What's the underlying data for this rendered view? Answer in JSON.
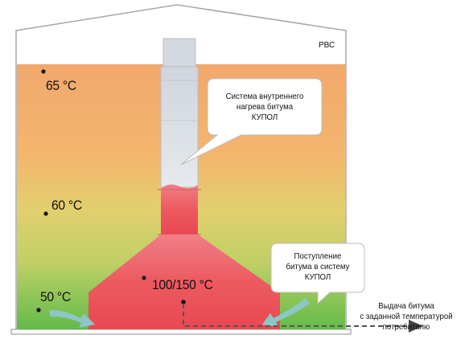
{
  "tank_label": "РВС",
  "system_bubble": {
    "lines": [
      "Система внутреннего",
      "нагрева битума",
      "КУПОЛ"
    ]
  },
  "inflow_bubble": {
    "lines": [
      "Поступление",
      "битума в систему",
      "КУПОЛ"
    ]
  },
  "temperatures": {
    "top": "65 °C",
    "middle": "60 °C",
    "bottom": "50 °C",
    "dome": "100/150 °C"
  },
  "output_label": {
    "lines": [
      "Выдача битума",
      "с заданной температурой",
      "потребителю"
    ]
  },
  "colors": {
    "heat_top": "#f2ad6e",
    "heat_mid": "#d7d66c",
    "heat_bottom": "#68bd4d",
    "dome_red": "#ea4a52",
    "pipe_grey": "#d5dbe2",
    "arrow_teal": "#8ec8c6",
    "outline": "#9a9a9a"
  }
}
